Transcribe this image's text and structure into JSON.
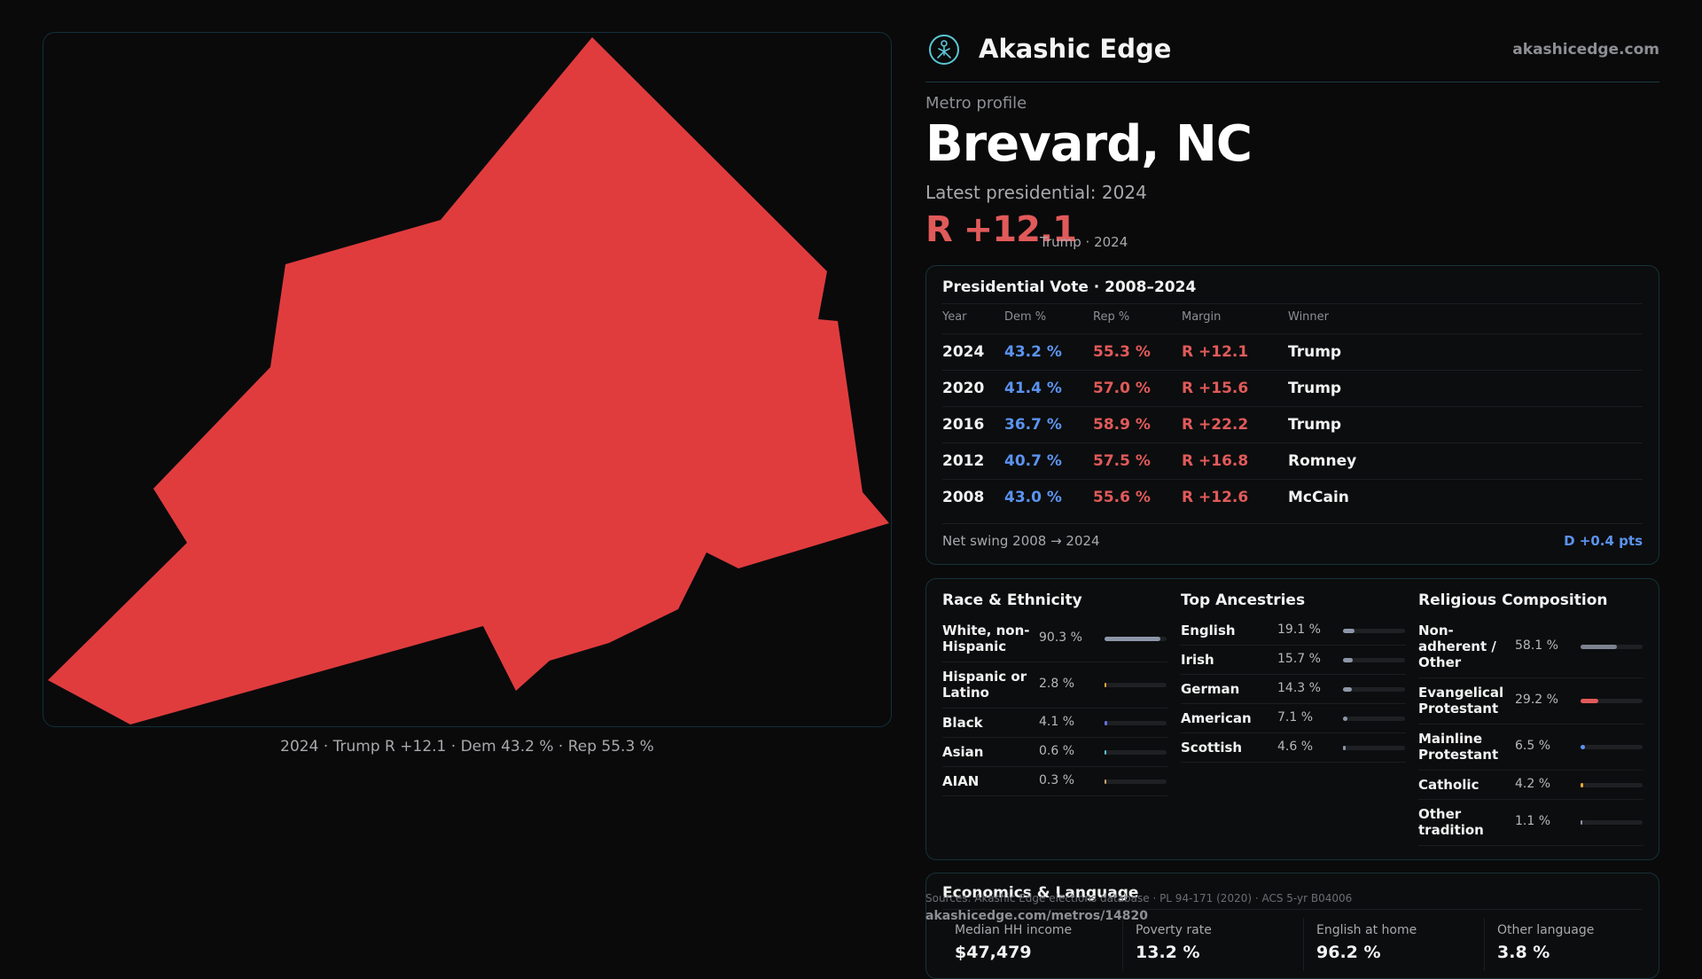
{
  "brand": {
    "name": "Akashic Edge",
    "url": "akashicedge.com",
    "accent": "#5bc6d6"
  },
  "metro": {
    "eyebrow": "Metro profile",
    "title": "Brevard, NC",
    "latest_label": "Latest presidential: 2024",
    "margin": "R +12.1",
    "margin_sub": "Trump · 2024"
  },
  "map": {
    "caption": "2024 · Trump R +12.1 · Dem 43.2 % · Rep 55.3 %",
    "fill_color": "#e03c3e"
  },
  "presidential": {
    "title": "Presidential Vote · 2008–2024",
    "headers": [
      "Year",
      "Dem %",
      "Rep %",
      "Margin",
      "Winner"
    ],
    "rows": [
      {
        "year": "2024",
        "dem": "43.2 %",
        "rep": "55.3 %",
        "margin": "R +12.1",
        "winner": "Trump"
      },
      {
        "year": "2020",
        "dem": "41.4 %",
        "rep": "57.0 %",
        "margin": "R +15.6",
        "winner": "Trump"
      },
      {
        "year": "2016",
        "dem": "36.7 %",
        "rep": "58.9 %",
        "margin": "R +22.2",
        "winner": "Trump"
      },
      {
        "year": "2012",
        "dem": "40.7 %",
        "rep": "57.5 %",
        "margin": "R +16.8",
        "winner": "Romney"
      },
      {
        "year": "2008",
        "dem": "43.0 %",
        "rep": "55.6 %",
        "margin": "R +12.6",
        "winner": "McCain"
      }
    ],
    "swing_label": "Net swing 2008 → 2024",
    "swing_value": "D +0.4 pts",
    "colors": {
      "dem": "#5b93f0",
      "rep": "#e15a5a"
    }
  },
  "race": {
    "title": "Race & Ethnicity",
    "rows": [
      {
        "label": "White, non-Hispanic",
        "value": "90.3 %",
        "share": 0.903,
        "color": "#8c96a8"
      },
      {
        "label": "Hispanic or Latino",
        "value": "2.8 %",
        "share": 0.028,
        "color": "#e8a838"
      },
      {
        "label": "Black",
        "value": "4.1 %",
        "share": 0.041,
        "color": "#6a6ee6"
      },
      {
        "label": "Asian",
        "value": "0.6 %",
        "share": 0.006,
        "color": "#5bc6d6"
      },
      {
        "label": "AIAN",
        "value": "0.3 %",
        "share": 0.003,
        "color": "#c9a36b"
      }
    ]
  },
  "ancestry": {
    "title": "Top Ancestries",
    "rows": [
      {
        "label": "English",
        "value": "19.1 %",
        "share": 0.191,
        "color": "#8c96a8"
      },
      {
        "label": "Irish",
        "value": "15.7 %",
        "share": 0.157,
        "color": "#8c96a8"
      },
      {
        "label": "German",
        "value": "14.3 %",
        "share": 0.143,
        "color": "#8c96a8"
      },
      {
        "label": "American",
        "value": "7.1 %",
        "share": 0.071,
        "color": "#8c96a8"
      },
      {
        "label": "Scottish",
        "value": "4.6 %",
        "share": 0.046,
        "color": "#8c96a8"
      }
    ]
  },
  "religion": {
    "title": "Religious Composition",
    "rows": [
      {
        "label": "Non-adherent / Other",
        "value": "58.1 %",
        "share": 0.581,
        "color": "#7c8290"
      },
      {
        "label": "Evangelical Protestant",
        "value": "29.2 %",
        "share": 0.292,
        "color": "#e15a5a"
      },
      {
        "label": "Mainline Protestant",
        "value": "6.5 %",
        "share": 0.065,
        "color": "#5b93f0"
      },
      {
        "label": "Catholic",
        "value": "4.2 %",
        "share": 0.042,
        "color": "#e8a838"
      },
      {
        "label": "Other tradition",
        "value": "1.1 %",
        "share": 0.011,
        "color": "#8c96a8"
      }
    ]
  },
  "economics": {
    "title": "Economics & Language",
    "stats": [
      {
        "label": "Median HH income",
        "value": "$47,479"
      },
      {
        "label": "Poverty rate",
        "value": "13.2 %"
      },
      {
        "label": "English at home",
        "value": "96.2 %"
      },
      {
        "label": "Other language",
        "value": "3.8 %"
      }
    ]
  },
  "footer": {
    "sources": "Sources: Akashic Edge elections database · PL 94-171 (2020) · ACS 5-yr B04006",
    "url": "akashicedge.com/metros/14820"
  }
}
